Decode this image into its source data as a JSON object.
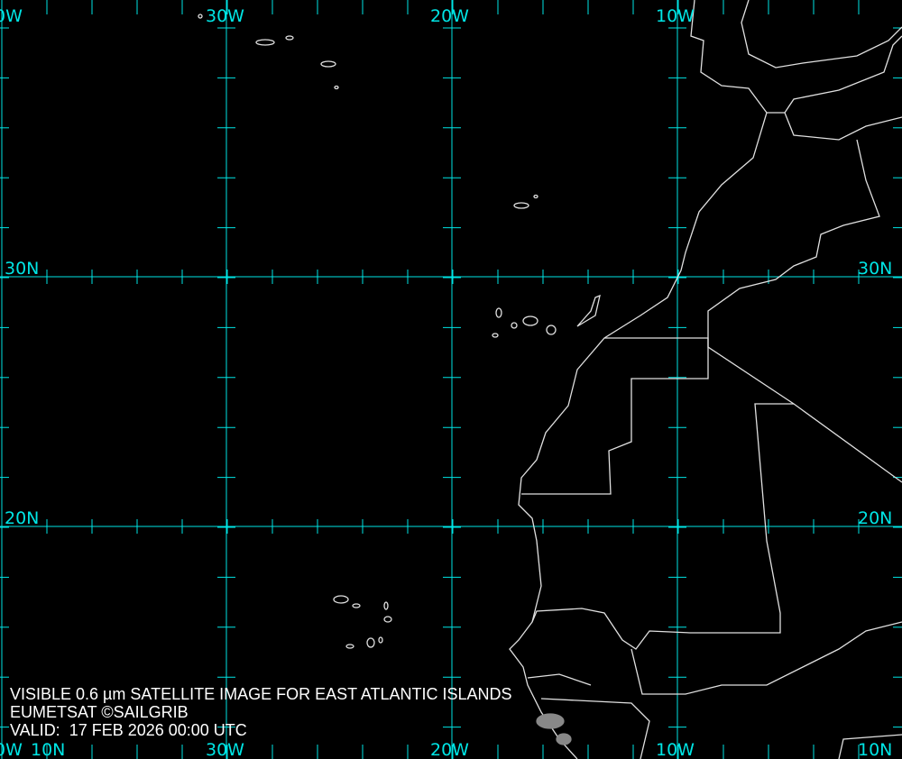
{
  "caption": {
    "line1": "VISIBLE 0.6 µm SATELLITE IMAGE FOR EAST ATLANTIC ISLANDS",
    "line2": "EUMETSAT ©SAILGRIB",
    "line3": "VALID:  17 FEB 2026 00:00 UTC"
  },
  "grid": {
    "color": "#00e5e5",
    "top_labels": [
      "0W",
      "30W",
      "20W",
      "10W"
    ],
    "bottom_labels": [
      "0W",
      "30W",
      "20W",
      "10W"
    ],
    "left_labels": [
      "30N",
      "20N",
      "10N"
    ],
    "right_labels": [
      "30N",
      "20N",
      "10N"
    ]
  },
  "coast_color": "#e0e0e0"
}
